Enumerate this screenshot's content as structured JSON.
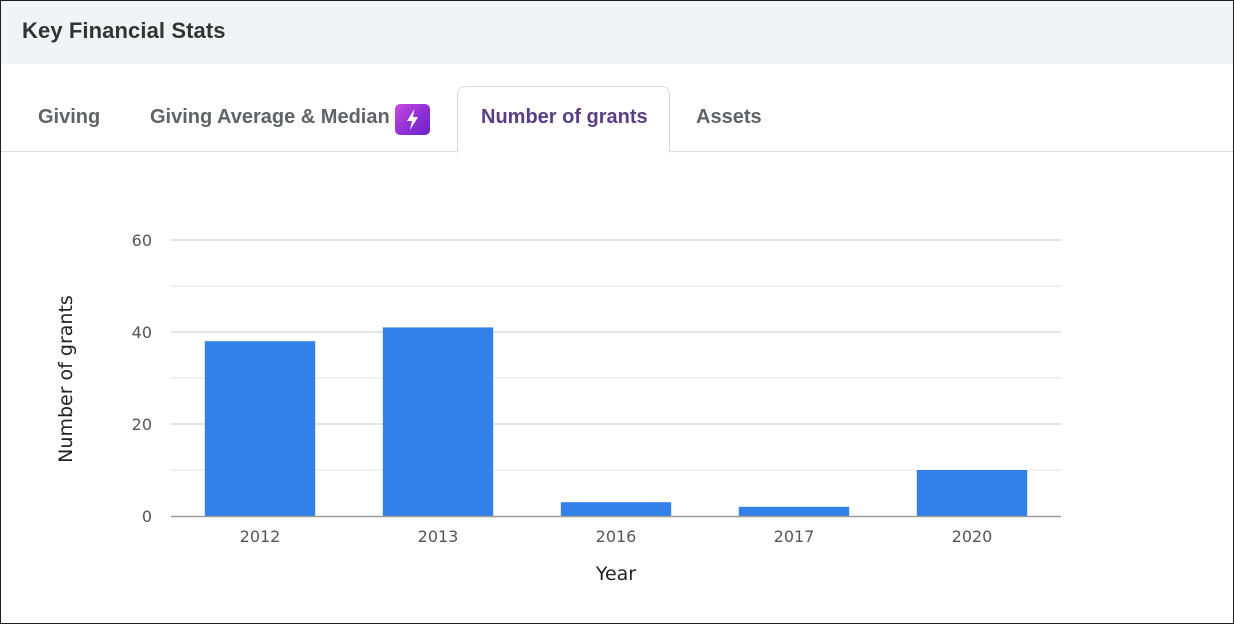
{
  "panel": {
    "title": "Key Financial Stats"
  },
  "tabs": [
    {
      "label": "Giving",
      "active": false
    },
    {
      "label": "Giving Average & Median",
      "active": false,
      "badge_icon": "lightning-bolt-icon"
    },
    {
      "label": "Number of grants",
      "active": true
    },
    {
      "label": "Assets",
      "active": false
    }
  ],
  "colors": {
    "bar": "#3380ea",
    "active_tab_text": "#5a3e85",
    "header_bg": "#f0f4f7",
    "badge": "#9b34d8"
  },
  "chart_data": {
    "type": "bar",
    "categories": [
      "2012",
      "2013",
      "2016",
      "2017",
      "2020"
    ],
    "values": [
      38,
      41,
      3,
      2,
      10
    ],
    "xlabel": "Year",
    "ylabel": "Number of grants",
    "ylim": [
      0,
      60
    ],
    "yticks": [
      0,
      20,
      40,
      60
    ],
    "minor_yticks": [
      10,
      30,
      50
    ],
    "grid": true,
    "legend": "none"
  }
}
